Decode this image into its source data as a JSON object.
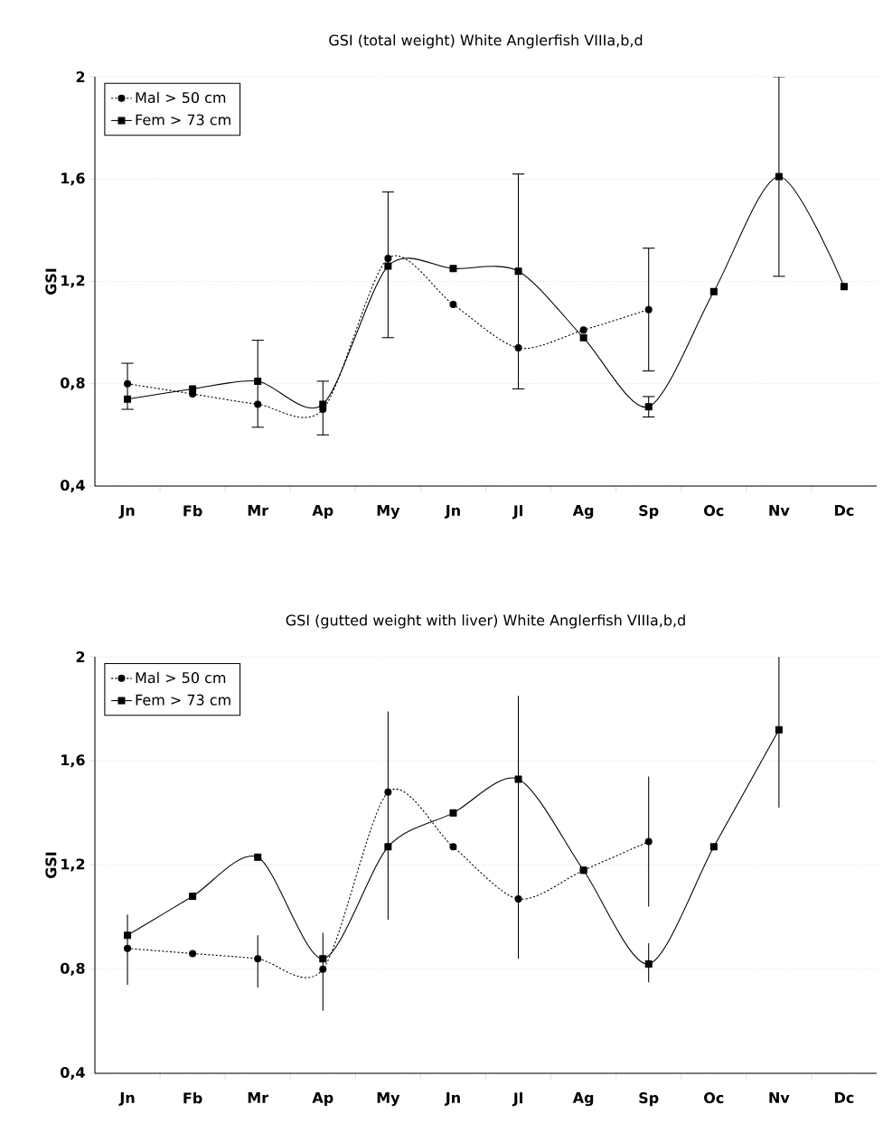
{
  "chart_data": [
    {
      "type": "line",
      "title": "GSI (total weight) White Anglerfish VIIIa,b,d",
      "ylabel": "GSI",
      "categories": [
        "Jn",
        "Fb",
        "Mr",
        "Ap",
        "My",
        "Jn",
        "Jl",
        "Ag",
        "Sp",
        "Oc",
        "Nv",
        "Dc"
      ],
      "series": [
        {
          "name": "Mal > 50 cm",
          "color": "#000000",
          "marker": "circle",
          "line_style": "dotted",
          "values": [
            0.8,
            0.76,
            0.72,
            0.7,
            1.29,
            1.11,
            0.94,
            1.01,
            1.09,
            null,
            null,
            null
          ],
          "errors": [
            [
              0.7,
              0.88
            ],
            null,
            null,
            null,
            null,
            null,
            null,
            null,
            [
              0.85,
              1.33
            ],
            null,
            null,
            null
          ]
        },
        {
          "name": "Fem > 73 cm",
          "color": "#000000",
          "marker": "square",
          "line_style": "solid",
          "values": [
            0.74,
            0.78,
            0.81,
            0.72,
            1.26,
            1.25,
            1.24,
            0.98,
            0.71,
            1.16,
            1.61,
            1.18
          ],
          "errors": [
            null,
            null,
            [
              0.63,
              0.97
            ],
            [
              0.6,
              0.81
            ],
            [
              0.98,
              1.55
            ],
            null,
            [
              0.78,
              1.62
            ],
            null,
            [
              0.67,
              0.75
            ],
            null,
            [
              1.22,
              2.0
            ],
            null
          ]
        }
      ],
      "ylim": [
        0.4,
        2
      ],
      "yticks": [
        {
          "value": 0.4,
          "label": "0,4"
        },
        {
          "value": 0.8,
          "label": "0,8"
        },
        {
          "value": 1.2,
          "label": "1,2"
        },
        {
          "value": 1.6,
          "label": "1,6"
        },
        2
      ],
      "grid": "y",
      "legend": "top left"
    },
    {
      "type": "line",
      "title": "GSI (gutted weight with liver) White Anglerfish VIIIa,b,d",
      "ylabel": "GSI",
      "categories": [
        "Jn",
        "Fb",
        "Mr",
        "Ap",
        "My",
        "Jn",
        "Jl",
        "Ag",
        "Sp",
        "Oc",
        "Nv",
        "Dc"
      ],
      "series": [
        {
          "name": "Mal > 50 cm",
          "color": "#000000",
          "marker": "circle",
          "line_style": "dotted",
          "values": [
            0.88,
            0.86,
            0.84,
            0.8,
            1.48,
            1.27,
            1.07,
            1.18,
            1.29,
            null,
            null,
            null
          ],
          "errors": [
            [
              0.74,
              1.01
            ],
            null,
            [
              0.73,
              0.93
            ],
            [
              0.64,
              0.94
            ],
            [
              0.99,
              1.79
            ],
            null,
            null,
            null,
            [
              1.04,
              1.54
            ],
            null,
            null,
            null
          ]
        },
        {
          "name": "Fem > 73 cm",
          "color": "#000000",
          "marker": "square",
          "line_style": "solid",
          "values": [
            0.93,
            1.08,
            1.23,
            0.84,
            1.27,
            1.4,
            1.53,
            1.18,
            0.82,
            1.27,
            1.72,
            null
          ],
          "errors": [
            null,
            null,
            null,
            null,
            null,
            null,
            [
              0.84,
              1.85
            ],
            null,
            [
              0.75,
              0.9
            ],
            null,
            [
              1.42,
              2.0
            ],
            null
          ]
        }
      ],
      "ylim": [
        0.4,
        2
      ],
      "yticks": [
        {
          "value": 0.4,
          "label": "0,4"
        },
        {
          "value": 0.8,
          "label": "0,8"
        },
        {
          "value": 1.2,
          "label": "1,2"
        },
        {
          "value": 1.6,
          "label": "1,6"
        },
        2
      ],
      "grid": "y",
      "legend": "top left"
    }
  ]
}
